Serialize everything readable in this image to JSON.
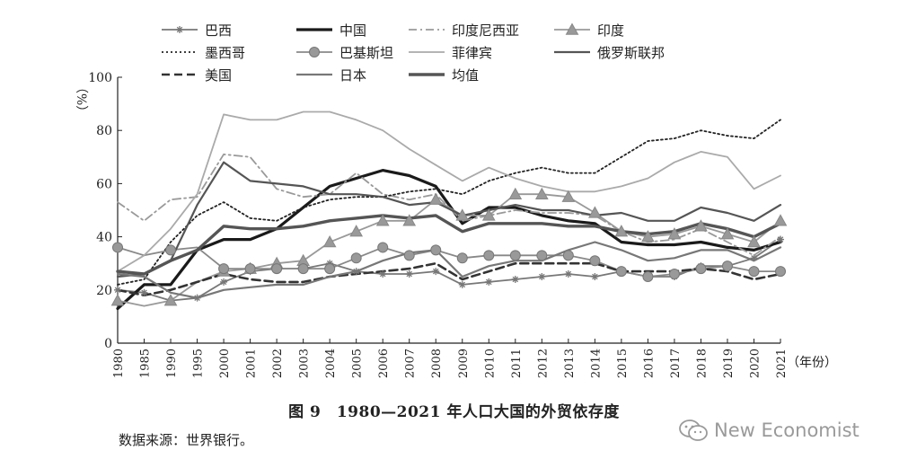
{
  "chart_data": {
    "type": "line",
    "title": "图 9　1980—2021 年人口大国的外贸依存度",
    "ylabel": "（%）",
    "xlabel": "（年份）",
    "ylim": [
      0,
      100
    ],
    "yticks": [
      0,
      20,
      40,
      60,
      80,
      100
    ],
    "categories": [
      "1980",
      "1985",
      "1990",
      "1995",
      "2000",
      "2001",
      "2002",
      "2003",
      "2004",
      "2005",
      "2006",
      "2007",
      "2008",
      "2009",
      "2010",
      "2011",
      "2012",
      "2013",
      "2014",
      "2015",
      "2016",
      "2017",
      "2018",
      "2019",
      "2020",
      "2021"
    ],
    "legend_position": "top",
    "series": [
      {
        "name": "巴西",
        "color": "#777777",
        "style": "star",
        "values": [
          20,
          19,
          16,
          17,
          23,
          27,
          28,
          28,
          30,
          27,
          26,
          26,
          27,
          22,
          23,
          24,
          25,
          26,
          25,
          27,
          25,
          25,
          29,
          29,
          32,
          39
        ]
      },
      {
        "name": "中国",
        "color": "#1a1a1a",
        "style": "bold",
        "values": [
          13,
          22,
          22,
          35,
          39,
          39,
          43,
          51,
          59,
          62,
          65,
          63,
          59,
          45,
          51,
          51,
          48,
          46,
          45,
          38,
          37,
          37,
          38,
          36,
          35,
          38
        ]
      },
      {
        "name": "印度尼西亚",
        "color": "#999999",
        "style": "dashdot",
        "values": [
          53,
          46,
          54,
          55,
          71,
          70,
          58,
          55,
          56,
          64,
          56,
          54,
          56,
          46,
          48,
          50,
          49,
          49,
          48,
          42,
          38,
          39,
          43,
          38,
          33,
          40
        ]
      },
      {
        "name": "印度",
        "color": "#999999",
        "style": "triangle",
        "values": [
          16,
          14,
          16,
          23,
          27,
          28,
          30,
          31,
          38,
          42,
          46,
          46,
          54,
          48,
          48,
          56,
          56,
          55,
          49,
          42,
          40,
          41,
          44,
          41,
          38,
          46
        ]
      },
      {
        "name": "墨西哥",
        "color": "#222222",
        "style": "dotted",
        "values": [
          22,
          24,
          38,
          48,
          53,
          47,
          46,
          51,
          54,
          55,
          55,
          57,
          58,
          56,
          61,
          64,
          66,
          64,
          64,
          70,
          76,
          77,
          80,
          78,
          77,
          84
        ]
      },
      {
        "name": "巴基斯坦",
        "color": "#888888",
        "style": "circle",
        "values": [
          36,
          33,
          35,
          36,
          28,
          28,
          28,
          28,
          28,
          32,
          36,
          33,
          35,
          32,
          33,
          33,
          33,
          33,
          31,
          27,
          25,
          26,
          28,
          29,
          27,
          27
        ]
      },
      {
        "name": "菲律宾",
        "color": "#aaaaaa",
        "style": "thin",
        "values": [
          27,
          33,
          43,
          56,
          86,
          84,
          84,
          87,
          87,
          84,
          80,
          73,
          67,
          61,
          66,
          62,
          59,
          57,
          57,
          59,
          62,
          68,
          72,
          70,
          58,
          63
        ]
      },
      {
        "name": "俄罗斯联邦",
        "color": "#555555",
        "style": "medium",
        "values": [
          25,
          26,
          31,
          52,
          68,
          61,
          60,
          59,
          56,
          56,
          55,
          52,
          53,
          48,
          50,
          52,
          50,
          50,
          48,
          49,
          46,
          46,
          51,
          49,
          46,
          52
        ]
      },
      {
        "name": "美国",
        "color": "#333333",
        "style": "dashed",
        "values": [
          20,
          18,
          20,
          23,
          26,
          24,
          23,
          23,
          25,
          26,
          27,
          28,
          30,
          24,
          27,
          30,
          30,
          30,
          30,
          27,
          27,
          27,
          28,
          27,
          24,
          26
        ]
      },
      {
        "name": "日本",
        "color": "#777777",
        "style": "medium",
        "values": [
          26,
          25,
          19,
          17,
          20,
          21,
          22,
          22,
          25,
          27,
          31,
          34,
          35,
          25,
          29,
          31,
          31,
          35,
          38,
          35,
          31,
          32,
          35,
          35,
          31,
          36
        ]
      },
      {
        "name": "均值",
        "color": "#555555",
        "style": "thick",
        "values": [
          27,
          26,
          31,
          35,
          44,
          43,
          43,
          44,
          46,
          47,
          48,
          47,
          48,
          42,
          45,
          45,
          45,
          44,
          44,
          42,
          41,
          42,
          45,
          43,
          40,
          45
        ]
      }
    ]
  },
  "figure": {
    "caption": "图 9　1980—2021 年人口大国的外贸依存度",
    "source": "数据来源：世界银行。",
    "watermark": "New Economist",
    "watermark_icon": "wechat-icon"
  }
}
